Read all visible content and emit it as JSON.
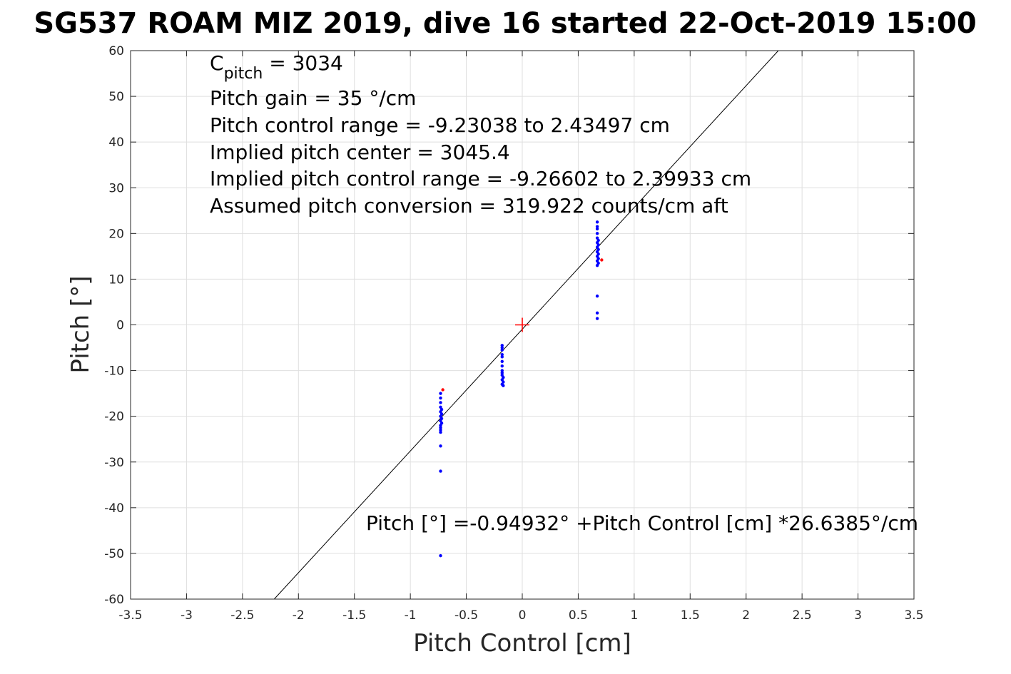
{
  "chart_data": {
    "type": "scatter",
    "title": "SG537 ROAM MIZ 2019, dive 16 started 22-Oct-2019 15:00",
    "xlabel": "Pitch Control [cm]",
    "ylabel": "Pitch [°]",
    "xlim": [
      -3.5,
      3.5
    ],
    "ylim": [
      -60,
      60
    ],
    "grid": true,
    "x_ticks": [
      -3.5,
      -3,
      -2.5,
      -2,
      -1.5,
      -1,
      -0.5,
      0,
      0.5,
      1,
      1.5,
      2,
      2.5,
      3,
      3.5
    ],
    "x_tick_labels": [
      "-3.5",
      "-3",
      "-2.5",
      "-2",
      "-1.5",
      "-1",
      "-0.5",
      "0",
      "0.5",
      "1",
      "1.5",
      "2",
      "2.5",
      "3",
      "3.5"
    ],
    "y_ticks": [
      -60,
      -50,
      -40,
      -30,
      -20,
      -10,
      0,
      10,
      20,
      30,
      40,
      50,
      60
    ],
    "y_tick_labels": [
      "-60",
      "-50",
      "-40",
      "-30",
      "-20",
      "-10",
      "0",
      "10",
      "20",
      "30",
      "40",
      "50",
      "60"
    ],
    "annotations": {
      "c_pitch_main": "C",
      "c_pitch_sub": "pitch",
      "c_pitch_value": " = 3034",
      "lines": [
        "Pitch gain = 35 °/cm",
        "Pitch control range = -9.23038 to 2.43497 cm",
        "Implied pitch center = 3045.4",
        "Implied pitch control range = -9.26602 to 2.39933 cm",
        "Assumed pitch conversion = 319.922 counts/cm aft"
      ],
      "fit_equation": "Pitch [°] =-0.94932° +Pitch Control [cm] *26.6385°/cm"
    },
    "fit_line": {
      "intercept": -0.94932,
      "slope": 26.6385,
      "color": "#000000"
    },
    "center_marker": {
      "x": 0,
      "y": 0,
      "color": "#ff0000"
    },
    "series": [
      {
        "color": "#0000ff",
        "points": [
          [
            -0.73,
            -15.0
          ],
          [
            -0.73,
            -16.0
          ],
          [
            -0.73,
            -17.0
          ],
          [
            -0.73,
            -18.0
          ],
          [
            -0.72,
            -18.5
          ],
          [
            -0.73,
            -19.0
          ],
          [
            -0.72,
            -19.5
          ],
          [
            -0.73,
            -20.0
          ],
          [
            -0.72,
            -20.5
          ],
          [
            -0.73,
            -21.0
          ],
          [
            -0.72,
            -21.5
          ],
          [
            -0.73,
            -22.0
          ],
          [
            -0.73,
            -22.5
          ],
          [
            -0.73,
            -23.0
          ],
          [
            -0.73,
            -23.5
          ],
          [
            -0.73,
            -26.5
          ],
          [
            -0.73,
            -32.0
          ],
          [
            -0.73,
            -50.5
          ],
          [
            -0.18,
            -4.5
          ],
          [
            -0.18,
            -5.0
          ],
          [
            -0.18,
            -5.5
          ],
          [
            -0.18,
            -6.5
          ],
          [
            -0.18,
            -7.0
          ],
          [
            -0.18,
            -8.0
          ],
          [
            -0.18,
            -9.0
          ],
          [
            -0.18,
            -10.0
          ],
          [
            -0.18,
            -10.5
          ],
          [
            -0.18,
            -11.0
          ],
          [
            -0.17,
            -11.5
          ],
          [
            -0.18,
            -12.0
          ],
          [
            -0.17,
            -12.5
          ],
          [
            -0.18,
            -13.0
          ],
          [
            -0.17,
            -13.3
          ],
          [
            0.67,
            22.5
          ],
          [
            0.67,
            21.5
          ],
          [
            0.67,
            21.0
          ],
          [
            0.67,
            20.0
          ],
          [
            0.67,
            19.0
          ],
          [
            0.68,
            18.5
          ],
          [
            0.67,
            18.0
          ],
          [
            0.68,
            17.5
          ],
          [
            0.67,
            17.0
          ],
          [
            0.68,
            16.5
          ],
          [
            0.67,
            16.0
          ],
          [
            0.68,
            15.5
          ],
          [
            0.67,
            15.0
          ],
          [
            0.68,
            14.5
          ],
          [
            0.67,
            14.0
          ],
          [
            0.68,
            13.5
          ],
          [
            0.67,
            13.0
          ],
          [
            0.67,
            6.3
          ],
          [
            0.67,
            2.6
          ],
          [
            0.67,
            1.4
          ]
        ]
      },
      {
        "color": "#ff0000",
        "points": [
          [
            -0.71,
            -14.2
          ],
          [
            0.71,
            14.2
          ]
        ]
      }
    ]
  }
}
